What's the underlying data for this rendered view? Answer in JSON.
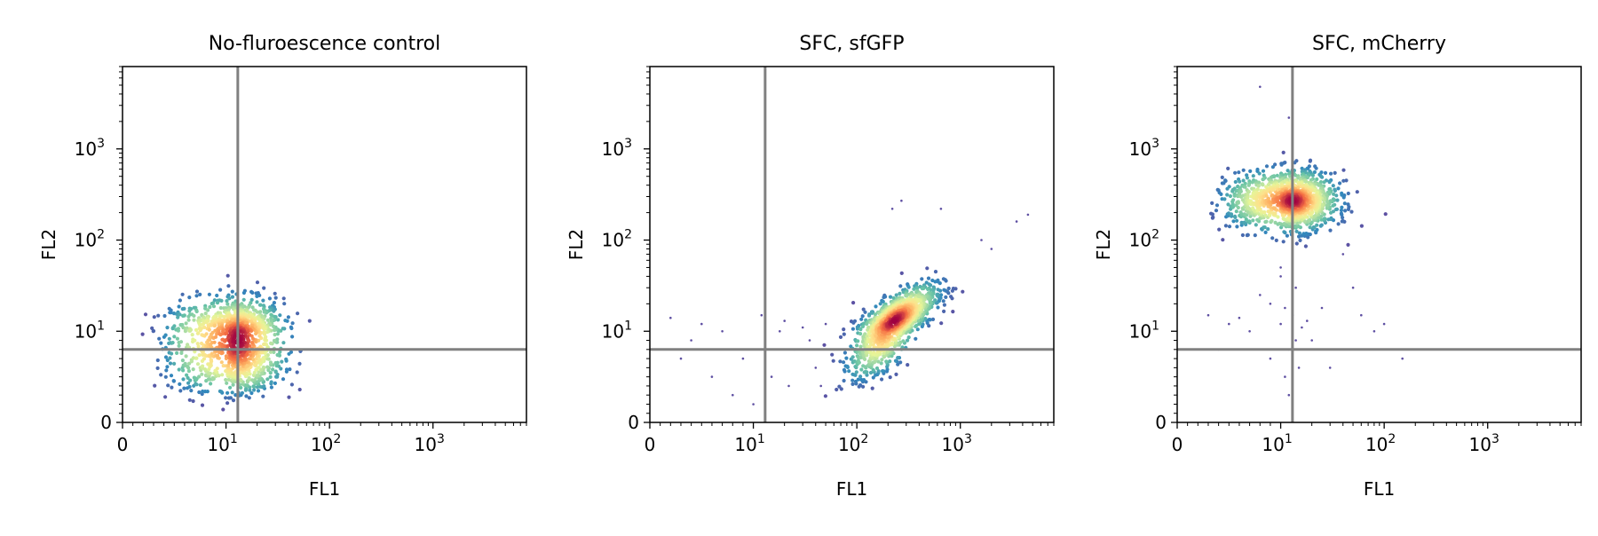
{
  "chart_data": [
    {
      "type": "scatter",
      "title": "No-fluroescence control",
      "xlabel": "FL1",
      "ylabel": "FL2",
      "xscale": "symlog",
      "yscale": "symlog",
      "xlim": [
        0,
        8000
      ],
      "ylim": [
        0,
        8000
      ],
      "xticks": [
        {
          "base": "0",
          "exp": ""
        },
        {
          "base": "10",
          "exp": "1"
        },
        {
          "base": "10",
          "exp": "2"
        },
        {
          "base": "10",
          "exp": "3"
        }
      ],
      "yticks": [
        {
          "base": "0",
          "exp": ""
        },
        {
          "base": "10",
          "exp": "1"
        },
        {
          "base": "10",
          "exp": "2"
        },
        {
          "base": "10",
          "exp": "3"
        }
      ],
      "gate_lines": {
        "x": 13,
        "y": 8
      },
      "density_colormap": "Spectral_r",
      "clusters": [
        {
          "center": [
            13,
            9
          ],
          "spread": [
            0.22,
            0.2
          ],
          "n": 1300
        }
      ],
      "outliers": []
    },
    {
      "type": "scatter",
      "title": "SFC, sfGFP",
      "xlabel": "FL1",
      "ylabel": "FL2",
      "xscale": "symlog",
      "yscale": "symlog",
      "xlim": [
        0,
        8000
      ],
      "ylim": [
        0,
        8000
      ],
      "xticks": [
        {
          "base": "0",
          "exp": ""
        },
        {
          "base": "10",
          "exp": "1"
        },
        {
          "base": "10",
          "exp": "2"
        },
        {
          "base": "10",
          "exp": "3"
        }
      ],
      "yticks": [
        {
          "base": "0",
          "exp": ""
        },
        {
          "base": "10",
          "exp": "1"
        },
        {
          "base": "10",
          "exp": "2"
        },
        {
          "base": "10",
          "exp": "3"
        }
      ],
      "gate_lines": {
        "x": 13,
        "y": 8
      },
      "density_colormap": "Spectral_r",
      "clusters": [
        {
          "center": [
            230,
            13
          ],
          "spread": [
            0.2,
            0.19
          ],
          "n": 1300,
          "correlation": 0.72
        }
      ],
      "outliers": [
        [
          3500,
          160
        ],
        [
          4500,
          190
        ],
        [
          650,
          220
        ],
        [
          220,
          220
        ],
        [
          270,
          270
        ],
        [
          2000,
          80
        ],
        [
          1600,
          100
        ],
        [
          5,
          12
        ],
        [
          6,
          5
        ],
        [
          9,
          7
        ],
        [
          18,
          10
        ],
        [
          25,
          8
        ],
        [
          30,
          11
        ],
        [
          40,
          6
        ],
        [
          2,
          14
        ],
        [
          4,
          9
        ],
        [
          8,
          3
        ],
        [
          12,
          15
        ],
        [
          15,
          5
        ],
        [
          22,
          4
        ],
        [
          35,
          9
        ],
        [
          50,
          12
        ],
        [
          3,
          7
        ],
        [
          7,
          10
        ],
        [
          10,
          2
        ],
        [
          20,
          13
        ],
        [
          45,
          4
        ],
        [
          60,
          8
        ]
      ]
    },
    {
      "type": "scatter",
      "title": "SFC, mCherry",
      "xlabel": "FL1",
      "ylabel": "FL2",
      "xscale": "symlog",
      "yscale": "symlog",
      "xlim": [
        0,
        8000
      ],
      "ylim": [
        0,
        8000
      ],
      "xticks": [
        {
          "base": "0",
          "exp": ""
        },
        {
          "base": "10",
          "exp": "1"
        },
        {
          "base": "10",
          "exp": "2"
        },
        {
          "base": "10",
          "exp": "3"
        }
      ],
      "yticks": [
        {
          "base": "0",
          "exp": ""
        },
        {
          "base": "10",
          "exp": "1"
        },
        {
          "base": "10",
          "exp": "2"
        },
        {
          "base": "10",
          "exp": "3"
        }
      ],
      "gate_lines": {
        "x": 13,
        "y": 8
      },
      "density_colormap": "Spectral_r",
      "clusters": [
        {
          "center": [
            13,
            270
          ],
          "spread": [
            0.21,
            0.16
          ],
          "n": 1300
        }
      ],
      "outliers": [
        [
          8,
          4800
        ],
        [
          12,
          2200
        ],
        [
          10,
          12
        ],
        [
          12,
          8
        ],
        [
          9,
          20
        ],
        [
          14,
          30
        ],
        [
          11,
          5
        ],
        [
          13,
          15
        ],
        [
          7,
          10
        ],
        [
          15,
          6
        ],
        [
          10,
          40
        ],
        [
          8,
          25
        ],
        [
          12,
          3
        ],
        [
          16,
          11
        ],
        [
          9,
          7
        ],
        [
          11,
          18
        ],
        [
          6,
          14
        ],
        [
          14,
          9
        ],
        [
          18,
          13
        ],
        [
          10,
          50
        ],
        [
          60,
          15
        ],
        [
          80,
          10
        ],
        [
          100,
          12
        ],
        [
          150,
          7
        ],
        [
          40,
          70
        ],
        [
          50,
          30
        ],
        [
          30,
          6
        ],
        [
          25,
          18
        ],
        [
          20,
          9
        ],
        [
          5,
          12
        ],
        [
          4,
          8
        ],
        [
          3,
          15
        ]
      ]
    }
  ]
}
